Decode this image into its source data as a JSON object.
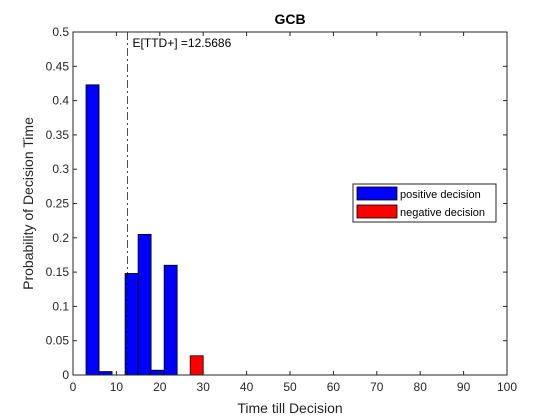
{
  "chart_data": {
    "type": "bar",
    "title": "GCB",
    "xlabel": "Time till Decision",
    "ylabel": "Probability of Decision Time",
    "xlim": [
      0,
      100
    ],
    "ylim": [
      0,
      0.5
    ],
    "xticks": [
      0,
      10,
      20,
      30,
      40,
      50,
      60,
      70,
      80,
      90,
      100
    ],
    "yticks": [
      0,
      0.05,
      0.1,
      0.15,
      0.2,
      0.25,
      0.3,
      0.35,
      0.4,
      0.45,
      0.5
    ],
    "bin_width": 3,
    "series": [
      {
        "name": "positive decision",
        "color": "#0000ff",
        "x": [
          4.5,
          7.5,
          13.5,
          16.5,
          19.5,
          22.5
        ],
        "values": [
          0.423,
          0.005,
          0.148,
          0.205,
          0.007,
          0.16
        ]
      },
      {
        "name": "negative decision",
        "color": "#ff0000",
        "x": [
          28.5
        ],
        "values": [
          0.028
        ]
      }
    ],
    "annotation": {
      "text": "E[TTD+] =12.5686",
      "x": 12.5686,
      "line_style": "dash-dot"
    },
    "legend_position": "right",
    "grid": false
  }
}
